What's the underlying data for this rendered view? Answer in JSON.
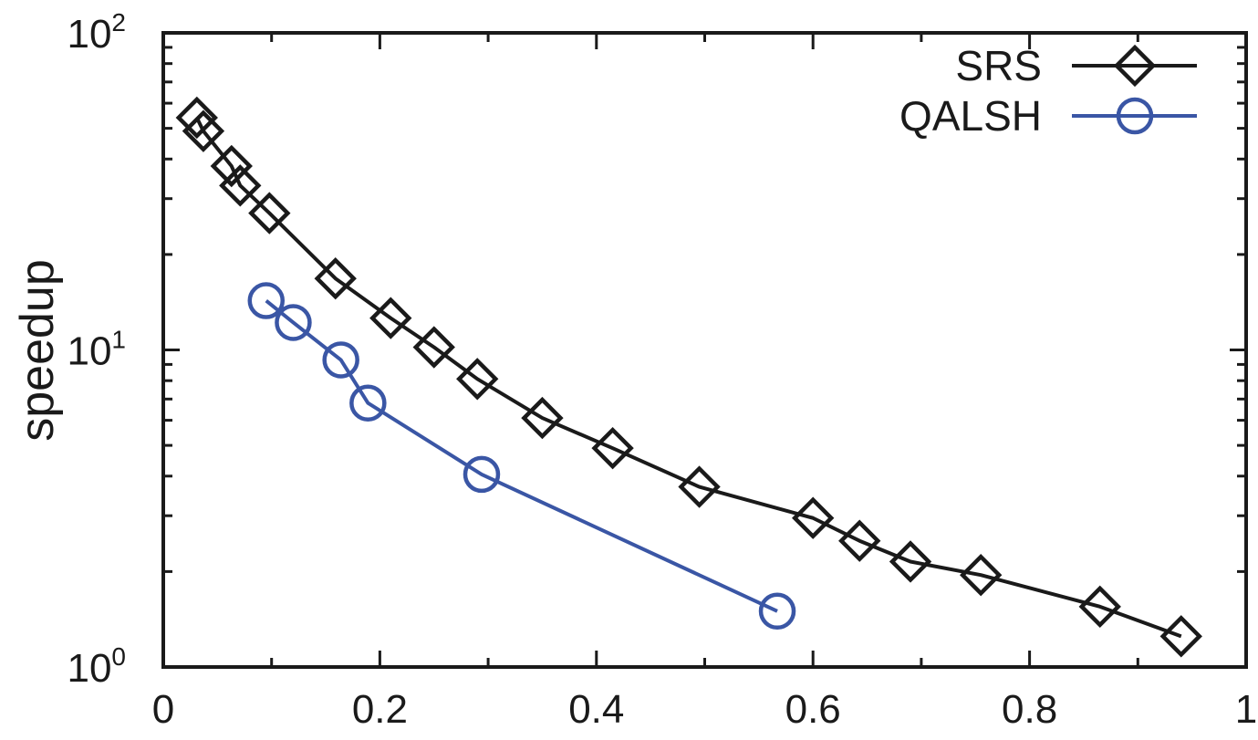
{
  "chart_data": {
    "type": "line",
    "title": "",
    "xlabel": "",
    "ylabel": "speedup",
    "xlim": [
      0,
      1
    ],
    "ylim": [
      1,
      100
    ],
    "yscale": "log",
    "grid": false,
    "legend_position": "top-right",
    "x_ticks": [
      "0",
      "0.2",
      "0.4",
      "0.6",
      "0.8",
      "1"
    ],
    "y_ticks": [
      {
        "base": "10",
        "exp": "0"
      },
      {
        "base": "10",
        "exp": "1"
      },
      {
        "base": "10",
        "exp": "2"
      }
    ],
    "series": [
      {
        "name": "SRS",
        "color": "#1a1a1a",
        "marker": "diamond",
        "x": [
          0.031,
          0.037,
          0.063,
          0.071,
          0.098,
          0.159,
          0.21,
          0.25,
          0.29,
          0.35,
          0.415,
          0.495,
          0.6,
          0.643,
          0.69,
          0.755,
          0.865,
          0.94
        ],
        "y": [
          54,
          49,
          38,
          33,
          27,
          16.8,
          12.6,
          10.2,
          8.1,
          6.1,
          4.9,
          3.7,
          2.95,
          2.5,
          2.15,
          1.95,
          1.55,
          1.25
        ]
      },
      {
        "name": "QALSH",
        "color": "#3a56a5",
        "marker": "circle",
        "x": [
          0.095,
          0.12,
          0.164,
          0.189,
          0.294,
          0.567
        ],
        "y": [
          14.3,
          12.2,
          9.3,
          6.8,
          4.05,
          1.5
        ]
      }
    ]
  }
}
